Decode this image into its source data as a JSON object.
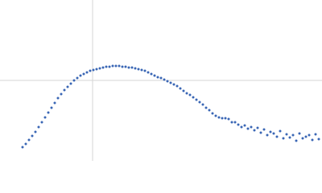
{
  "chart_data": {
    "type": "scatter",
    "color": "#3a66b5",
    "xlim": [
      0,
      4
    ],
    "ylim": [
      0,
      2
    ],
    "vlines": [
      1.15
    ],
    "hlines": [
      1.0
    ],
    "x": [
      0.28,
      0.32,
      0.36,
      0.4,
      0.44,
      0.48,
      0.52,
      0.56,
      0.6,
      0.64,
      0.68,
      0.72,
      0.76,
      0.8,
      0.84,
      0.88,
      0.92,
      0.96,
      1.0,
      1.04,
      1.08,
      1.12,
      1.16,
      1.2,
      1.24,
      1.28,
      1.32,
      1.36,
      1.4,
      1.44,
      1.48,
      1.52,
      1.56,
      1.6,
      1.64,
      1.68,
      1.72,
      1.76,
      1.8,
      1.84,
      1.88,
      1.92,
      1.96,
      2.0,
      2.04,
      2.08,
      2.12,
      2.16,
      2.2,
      2.24,
      2.28,
      2.32,
      2.36,
      2.4,
      2.44,
      2.48,
      2.52,
      2.56,
      2.6,
      2.64,
      2.68,
      2.72,
      2.76,
      2.8,
      2.84,
      2.88,
      2.92,
      2.96,
      3.0,
      3.04,
      3.08,
      3.12,
      3.16,
      3.2,
      3.24,
      3.28,
      3.32,
      3.36,
      3.4,
      3.44,
      3.48,
      3.52,
      3.56,
      3.6,
      3.64,
      3.68,
      3.72,
      3.76,
      3.8,
      3.84,
      3.88,
      3.92,
      3.96
    ],
    "values": [
      0.17,
      0.21,
      0.26,
      0.31,
      0.36,
      0.42,
      0.48,
      0.54,
      0.6,
      0.66,
      0.72,
      0.78,
      0.83,
      0.88,
      0.92,
      0.96,
      1.0,
      1.03,
      1.06,
      1.08,
      1.1,
      1.12,
      1.13,
      1.14,
      1.15,
      1.16,
      1.17,
      1.17,
      1.18,
      1.18,
      1.18,
      1.17,
      1.17,
      1.16,
      1.16,
      1.15,
      1.14,
      1.13,
      1.12,
      1.1,
      1.08,
      1.06,
      1.04,
      1.03,
      1.01,
      0.99,
      0.97,
      0.95,
      0.93,
      0.9,
      0.87,
      0.84,
      0.82,
      0.79,
      0.76,
      0.73,
      0.7,
      0.66,
      0.63,
      0.59,
      0.56,
      0.54,
      0.53,
      0.53,
      0.52,
      0.48,
      0.48,
      0.45,
      0.42,
      0.44,
      0.4,
      0.42,
      0.38,
      0.41,
      0.35,
      0.39,
      0.32,
      0.36,
      0.34,
      0.3,
      0.37,
      0.28,
      0.33,
      0.29,
      0.32,
      0.25,
      0.34,
      0.28,
      0.3,
      0.32,
      0.26,
      0.33,
      0.27
    ]
  }
}
